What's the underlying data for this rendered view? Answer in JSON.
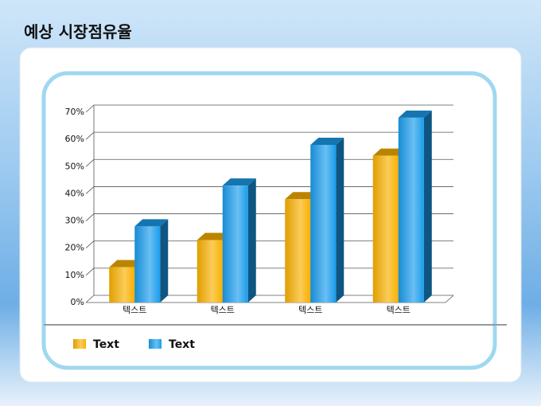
{
  "title": "예상 시장점유율",
  "chart_data": {
    "type": "bar3d",
    "categories": [
      "텍스트",
      "텍스트",
      "텍스트",
      "텍스트"
    ],
    "series": [
      {
        "name": "Text",
        "color": "#f9b000",
        "values": [
          13,
          23,
          38,
          54
        ]
      },
      {
        "name": "Text",
        "color": "#1a9cec",
        "values": [
          28,
          43,
          58,
          68
        ]
      }
    ],
    "ylim": [
      0,
      70
    ],
    "yticks": [
      {
        "value": 0,
        "label": "0%"
      },
      {
        "value": 10,
        "label": "10%"
      },
      {
        "value": 20,
        "label": "20%"
      },
      {
        "value": 30,
        "label": "30%"
      },
      {
        "value": 40,
        "label": "40%"
      },
      {
        "value": 50,
        "label": "50%"
      },
      {
        "value": 60,
        "label": "60%"
      },
      {
        "value": 70,
        "label": "70%"
      }
    ],
    "grid": true
  }
}
